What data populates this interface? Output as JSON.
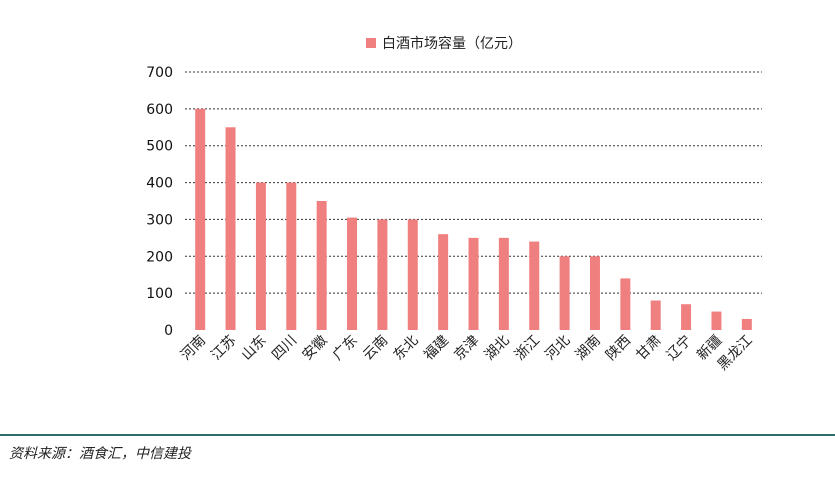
{
  "chart_data": {
    "type": "bar",
    "categories": [
      "河南",
      "江苏",
      "山东",
      "四川",
      "安徽",
      "广东",
      "云南",
      "东北",
      "福建",
      "京津",
      "湖北",
      "浙江",
      "河北",
      "湖南",
      "陕西",
      "甘肃",
      "辽宁",
      "新疆",
      "黑龙江"
    ],
    "series": [
      {
        "name": "白酒市场容量（亿元）",
        "values": [
          600,
          550,
          400,
          400,
          350,
          305,
          300,
          300,
          260,
          250,
          250,
          240,
          200,
          200,
          140,
          80,
          70,
          50,
          30
        ]
      }
    ],
    "ylim": [
      0,
      700
    ],
    "yticks": [
      0,
      100,
      200,
      300,
      400,
      500,
      600,
      700
    ],
    "grid": "dotted-horizontal",
    "legend_position": "top",
    "bar_color": "#f08080"
  },
  "legend": {
    "label": "白酒市场容量（亿元）"
  },
  "footer": {
    "source": "资料来源：酒食汇，中信建投"
  }
}
